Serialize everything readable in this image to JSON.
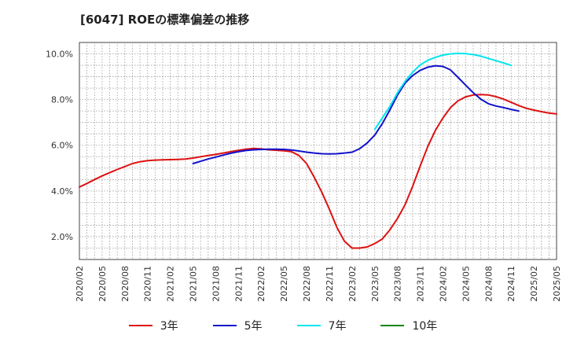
{
  "chart_data": {
    "type": "line",
    "title": "[6047]  ROEの標準偏差の推移",
    "xlabel": "",
    "ylabel": "",
    "ylim": [
      1.0,
      10.5
    ],
    "yticks": [
      2.0,
      4.0,
      6.0,
      8.0,
      10.0
    ],
    "ytick_labels": [
      "2.0%",
      "4.0%",
      "6.0%",
      "8.0%",
      "10.0%"
    ],
    "xticks": [
      "2020/02",
      "2020/05",
      "2020/08",
      "2020/11",
      "2021/02",
      "2021/05",
      "2021/08",
      "2021/11",
      "2022/02",
      "2022/05",
      "2022/08",
      "2022/11",
      "2023/02",
      "2023/05",
      "2023/08",
      "2023/11",
      "2024/02",
      "2024/05",
      "2024/08",
      "2024/11",
      "2025/02",
      "2025/05"
    ],
    "grid": true,
    "legend_position": "bottom",
    "series": [
      {
        "name": "3年",
        "color": "#dd1111",
        "start": "2020/02",
        "values": [
          4.17,
          4.33,
          4.5,
          4.66,
          4.8,
          4.94,
          5.07,
          5.2,
          5.28,
          5.33,
          5.35,
          5.36,
          5.37,
          5.38,
          5.4,
          5.44,
          5.5,
          5.55,
          5.6,
          5.66,
          5.72,
          5.78,
          5.83,
          5.86,
          5.84,
          5.8,
          5.78,
          5.76,
          5.72,
          5.55,
          5.2,
          4.6,
          3.95,
          3.2,
          2.4,
          1.8,
          1.5,
          1.5,
          1.55,
          1.7,
          1.9,
          2.3,
          2.8,
          3.4,
          4.2,
          5.1,
          5.95,
          6.65,
          7.2,
          7.65,
          7.95,
          8.12,
          8.2,
          8.22,
          8.2,
          8.13,
          8.02,
          7.88,
          7.74,
          7.62,
          7.54,
          7.47,
          7.41,
          7.37
        ]
      },
      {
        "name": "5年",
        "color": "#1111cc",
        "start": "2021/05",
        "values": [
          5.2,
          5.3,
          5.4,
          5.48,
          5.57,
          5.65,
          5.72,
          5.77,
          5.8,
          5.82,
          5.83,
          5.83,
          5.82,
          5.79,
          5.75,
          5.7,
          5.66,
          5.63,
          5.62,
          5.63,
          5.66,
          5.7,
          5.85,
          6.1,
          6.45,
          6.95,
          7.55,
          8.2,
          8.72,
          9.05,
          9.28,
          9.42,
          9.48,
          9.45,
          9.3,
          8.97,
          8.63,
          8.3,
          8.02,
          7.82,
          7.72,
          7.65,
          7.57,
          7.5
        ]
      },
      {
        "name": "7年",
        "color": "#00e5ee",
        "start": "2023/05",
        "values": [
          6.7,
          7.2,
          7.7,
          8.3,
          8.8,
          9.2,
          9.52,
          9.72,
          9.85,
          9.95,
          10.0,
          10.02,
          10.01,
          9.97,
          9.9,
          9.8,
          9.7,
          9.6,
          9.5
        ]
      },
      {
        "name": "10年",
        "color": "#118811",
        "start": "2025/02",
        "values": []
      }
    ]
  }
}
